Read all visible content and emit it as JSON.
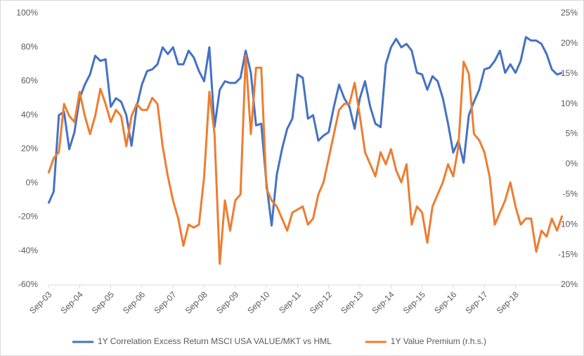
{
  "chart_data": {
    "type": "line",
    "categories": [
      "Sep-03",
      null,
      null,
      null,
      null,
      null,
      "Sep-04",
      null,
      null,
      null,
      null,
      null,
      "Sep-05",
      null,
      null,
      null,
      null,
      null,
      "Sep-06",
      null,
      null,
      null,
      null,
      null,
      "Sep-07",
      null,
      null,
      null,
      null,
      null,
      "Sep-08",
      null,
      null,
      null,
      null,
      null,
      "Sep-09",
      null,
      null,
      null,
      null,
      null,
      "Sep-10",
      null,
      null,
      null,
      null,
      null,
      "Sep-11",
      null,
      null,
      null,
      null,
      null,
      "Sep-12",
      null,
      null,
      null,
      null,
      null,
      "Sep-13",
      null,
      null,
      null,
      null,
      null,
      "Sep-14",
      null,
      null,
      null,
      null,
      null,
      "Sep-15",
      null,
      null,
      null,
      null,
      null,
      "Sep-16",
      null,
      null,
      null,
      null,
      null,
      "Sep-17",
      null,
      null,
      null,
      null,
      null,
      "Sep-18",
      null,
      null,
      null,
      null,
      null,
      null,
      null,
      null,
      null
    ],
    "series": [
      {
        "name": "1Y Correlation Excess Return MSCI USA VALUE/MKT vs HML",
        "color": "#4472c4",
        "values": [
          -12,
          -5,
          40,
          42,
          20,
          30,
          50,
          58,
          64,
          75,
          72,
          73,
          45,
          50,
          48,
          40,
          22,
          45,
          58,
          66,
          67,
          70,
          80,
          76,
          80,
          70,
          70,
          78,
          74,
          66,
          60,
          80,
          33,
          55,
          60,
          59,
          59,
          62,
          78,
          65,
          34,
          35,
          0,
          -25,
          5,
          20,
          32,
          38,
          64,
          62,
          38,
          40,
          25,
          28,
          30,
          45,
          58,
          50,
          45,
          32,
          50,
          60,
          45,
          35,
          33,
          70,
          80,
          85,
          80,
          82,
          78,
          65,
          64,
          55,
          63,
          60,
          50,
          35,
          18,
          25,
          12,
          40,
          48,
          55,
          67,
          68,
          72,
          78,
          65,
          70,
          65,
          72,
          86,
          84,
          84,
          82,
          76,
          67,
          64,
          65
        ]
      },
      {
        "name": "1Y Value Premium (r.h.s.)",
        "color": "#ed7d31",
        "axis": "y2",
        "values": [
          -1.5,
          1,
          2,
          10,
          8,
          7,
          12,
          8,
          5,
          8,
          12.5,
          10,
          7,
          9,
          8,
          3,
          8,
          10,
          9,
          9,
          11,
          10,
          3,
          -2,
          -6,
          -9,
          -13.5,
          -10,
          -10.5,
          -10,
          -2,
          12,
          5,
          -16.5,
          -6,
          -11,
          -6,
          -5,
          18,
          5,
          16,
          16,
          -4,
          -6,
          -7,
          -9,
          -11,
          -8,
          -7.5,
          -7,
          -10,
          -9,
          -5,
          -3,
          1,
          5,
          9,
          10,
          10,
          13.5,
          8,
          2,
          0,
          -2,
          2,
          0,
          2.5,
          -1,
          -3,
          0,
          -10,
          -7,
          -8,
          -13,
          -7,
          -5,
          -3,
          0,
          -2,
          3,
          17,
          15,
          5,
          4,
          2,
          -2,
          -10,
          -8,
          -6,
          -3,
          -7,
          -10,
          -9,
          -9,
          -14.5,
          -11,
          -12,
          -9,
          -11,
          -8.5
        ]
      }
    ],
    "ylim": [
      -60,
      100
    ],
    "yticks": [
      {
        "value": -60,
        "label": "-60%"
      },
      {
        "value": -40,
        "label": "-40%"
      },
      {
        "value": -20,
        "label": "-20%"
      },
      {
        "value": 0,
        "label": "0%"
      },
      {
        "value": 20,
        "label": "20%"
      },
      {
        "value": 40,
        "label": "40%"
      },
      {
        "value": 60,
        "label": "60%"
      },
      {
        "value": 80,
        "label": "80%"
      },
      {
        "value": 100,
        "label": "100%"
      }
    ],
    "y2lim": [
      -20,
      25
    ],
    "y2ticks": [
      {
        "value": -20,
        "label": "-20%"
      },
      {
        "value": -15,
        "label": "-15%"
      },
      {
        "value": -10,
        "label": "-10%"
      },
      {
        "value": -5,
        "label": "-5%"
      },
      {
        "value": 0,
        "label": "0%"
      },
      {
        "value": 5,
        "label": "5%"
      },
      {
        "value": 10,
        "label": "10%"
      },
      {
        "value": 15,
        "label": "15%"
      },
      {
        "value": 20,
        "label": "20%"
      },
      {
        "value": 25,
        "label": "25%"
      }
    ],
    "grid": false,
    "legend": "bottom"
  }
}
